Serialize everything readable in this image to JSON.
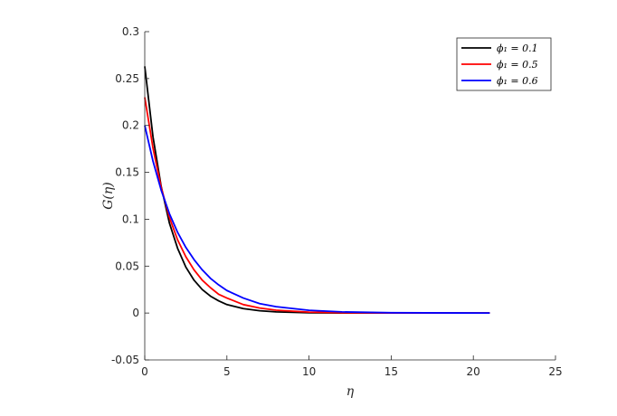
{
  "chart_data": {
    "type": "line",
    "title": "",
    "xlabel": "η",
    "ylabel": "G(η)",
    "xlim": [
      0,
      25
    ],
    "ylim": [
      -0.05,
      0.3
    ],
    "xticks": [
      0,
      5,
      10,
      15,
      20,
      25
    ],
    "xtick_labels": [
      "0",
      "5",
      "10",
      "15",
      "20",
      "25"
    ],
    "yticks": [
      -0.05,
      0,
      0.05,
      0.1,
      0.15,
      0.2,
      0.25,
      0.3
    ],
    "ytick_labels": [
      "-0.05",
      "0",
      "0.05",
      "0.1",
      "0.15",
      "0.2",
      "0.25",
      "0.3"
    ],
    "grid": false,
    "legend_position": "top-right",
    "series": [
      {
        "name": "ϕ₁ = 0.1",
        "color": "#000000",
        "x": [
          0,
          0.5,
          1,
          1.5,
          2,
          2.5,
          3,
          3.5,
          4,
          4.5,
          5,
          6,
          7,
          8,
          10,
          12,
          15,
          21
        ],
        "y": [
          0.263,
          0.188,
          0.135,
          0.096,
          0.069,
          0.049,
          0.035,
          0.025,
          0.018,
          0.013,
          0.009,
          0.0047,
          0.0024,
          0.0012,
          0.0003,
          0.0001,
          0,
          0
        ]
      },
      {
        "name": "ϕ₁ = 0.5",
        "color": "#ff0000",
        "x": [
          0,
          0.5,
          1,
          1.5,
          2,
          2.5,
          3,
          3.5,
          4,
          4.5,
          5,
          6,
          7,
          8,
          10,
          12,
          15,
          21
        ],
        "y": [
          0.23,
          0.176,
          0.134,
          0.102,
          0.078,
          0.06,
          0.046,
          0.035,
          0.027,
          0.02,
          0.016,
          0.009,
          0.0053,
          0.003,
          0.001,
          0.0003,
          0.0001,
          0
        ]
      },
      {
        "name": "ϕ₁ = 0.6",
        "color": "#0000ff",
        "x": [
          0,
          0.5,
          1,
          1.5,
          2,
          2.5,
          3,
          3.5,
          4,
          4.5,
          5,
          6,
          7,
          8,
          10,
          12,
          15,
          21
        ],
        "y": [
          0.2,
          0.162,
          0.131,
          0.106,
          0.086,
          0.07,
          0.057,
          0.046,
          0.037,
          0.03,
          0.024,
          0.016,
          0.01,
          0.0068,
          0.0029,
          0.0012,
          0.0003,
          0
        ]
      }
    ]
  }
}
